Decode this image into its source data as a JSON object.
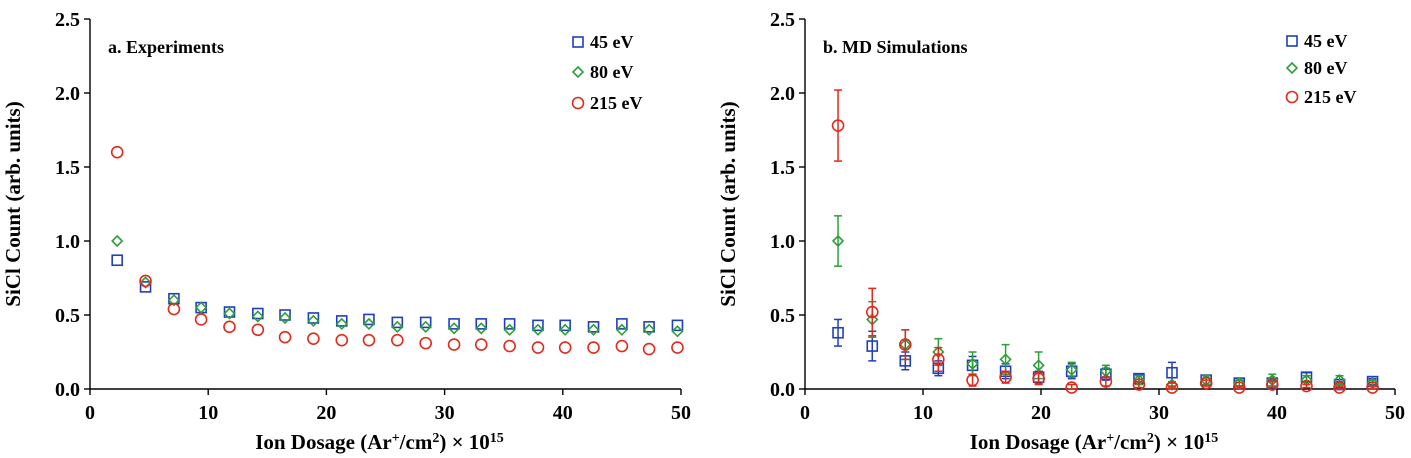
{
  "figure": {
    "series_colors": {
      "45 eV": "#1f3fbf",
      "80 eV": "#2e9e3a",
      "215 eV": "#e02a1c"
    },
    "series_markers": {
      "45 eV": "square",
      "80 eV": "diamond",
      "215 eV": "circle"
    }
  },
  "chart_data": [
    {
      "type": "scatter",
      "panel_label": "a. Experiments",
      "xlabel": "Ion Dosage (Ar",
      "xlabel_sup1": "+",
      "xlabel_mid": "/cm",
      "xlabel_sup2": "2",
      "xlabel_end": ") × 10",
      "xlabel_sup3": "15",
      "ylabel": "SiCl Count (arb. units)",
      "xlim": [
        0,
        50
      ],
      "ylim": [
        0,
        2.5
      ],
      "xticks": [
        0,
        10,
        20,
        30,
        40,
        50
      ],
      "yticks": [
        0.0,
        0.5,
        1.0,
        1.5,
        2.0,
        2.5
      ],
      "ytick_labels": [
        "0.0",
        "0.5",
        "1.0",
        "1.5",
        "2.0",
        "2.5"
      ],
      "grid": false,
      "legend_position": "top-right",
      "series": [
        {
          "name": "45 eV",
          "marker": "square",
          "x": [
            2.3,
            4.7,
            7.1,
            9.4,
            11.8,
            14.2,
            16.5,
            18.9,
            21.3,
            23.6,
            26.0,
            28.4,
            30.8,
            33.1,
            35.5,
            37.9,
            40.2,
            42.6,
            45.0,
            47.3,
            49.7
          ],
          "y": [
            0.87,
            0.69,
            0.61,
            0.55,
            0.52,
            0.51,
            0.5,
            0.48,
            0.46,
            0.47,
            0.45,
            0.45,
            0.44,
            0.44,
            0.44,
            0.43,
            0.43,
            0.42,
            0.44,
            0.42,
            0.43
          ]
        },
        {
          "name": "80 eV",
          "marker": "diamond",
          "x": [
            2.3,
            4.7,
            7.1,
            9.4,
            11.8,
            14.2,
            16.5,
            18.9,
            21.3,
            23.6,
            26.0,
            28.4,
            30.8,
            33.1,
            35.5,
            37.9,
            40.2,
            42.6,
            45.0,
            47.3,
            49.7
          ],
          "y": [
            1.0,
            0.72,
            0.6,
            0.55,
            0.51,
            0.49,
            0.48,
            0.46,
            0.44,
            0.44,
            0.42,
            0.42,
            0.41,
            0.41,
            0.4,
            0.4,
            0.4,
            0.4,
            0.4,
            0.4,
            0.39
          ]
        },
        {
          "name": "215 eV",
          "marker": "circle",
          "x": [
            2.3,
            4.7,
            7.1,
            9.4,
            11.8,
            14.2,
            16.5,
            18.9,
            21.3,
            23.6,
            26.0,
            28.4,
            30.8,
            33.1,
            35.5,
            37.9,
            40.2,
            42.6,
            45.0,
            47.3,
            49.7
          ],
          "y": [
            1.6,
            0.73,
            0.54,
            0.47,
            0.42,
            0.4,
            0.35,
            0.34,
            0.33,
            0.33,
            0.33,
            0.31,
            0.3,
            0.3,
            0.29,
            0.28,
            0.28,
            0.28,
            0.29,
            0.27,
            0.28
          ]
        }
      ]
    },
    {
      "type": "scatter",
      "panel_label": "b. MD Simulations",
      "xlabel": "Ion Dosage (Ar",
      "xlabel_sup1": "+",
      "xlabel_mid": "/cm",
      "xlabel_sup2": "2",
      "xlabel_end": ") × 10",
      "xlabel_sup3": "15",
      "ylabel": "SiCl Count (arb. units)",
      "xlim": [
        0,
        50
      ],
      "ylim": [
        0,
        2.5
      ],
      "xticks": [
        0,
        10,
        20,
        30,
        40,
        50
      ],
      "yticks": [
        0.0,
        0.5,
        1.0,
        1.5,
        2.0,
        2.5
      ],
      "ytick_labels": [
        "0.0",
        "0.5",
        "1.0",
        "1.5",
        "2.0",
        "2.5"
      ],
      "grid": false,
      "legend_position": "top-right",
      "series": [
        {
          "name": "45 eV",
          "marker": "square",
          "x": [
            2.8,
            5.7,
            8.5,
            11.3,
            14.2,
            17.0,
            19.8,
            22.6,
            25.5,
            28.3,
            31.1,
            34.0,
            36.8,
            39.6,
            42.5,
            45.3,
            48.1
          ],
          "y": [
            0.38,
            0.29,
            0.19,
            0.14,
            0.16,
            0.12,
            0.08,
            0.12,
            0.1,
            0.07,
            0.11,
            0.06,
            0.04,
            0.04,
            0.08,
            0.03,
            0.05
          ],
          "err": [
            0.09,
            0.1,
            0.06,
            0.05,
            0.06,
            0.05,
            0.04,
            0.05,
            0.04,
            0.03,
            0.07,
            0.03,
            0.02,
            0.02,
            0.03,
            0.02,
            0.02
          ]
        },
        {
          "name": "80 eV",
          "marker": "diamond",
          "x": [
            2.8,
            5.7,
            8.5,
            11.3,
            14.2,
            17.0,
            19.8,
            22.6,
            25.5,
            28.3,
            31.1,
            34.0,
            36.8,
            39.6,
            42.5,
            45.3,
            48.1
          ],
          "y": [
            1.0,
            0.47,
            0.3,
            0.25,
            0.17,
            0.2,
            0.16,
            0.13,
            0.12,
            0.06,
            0.03,
            0.06,
            0.04,
            0.06,
            0.06,
            0.06,
            0.04
          ],
          "err": [
            0.17,
            0.12,
            0.1,
            0.09,
            0.08,
            0.1,
            0.09,
            0.05,
            0.04,
            0.03,
            0.02,
            0.03,
            0.02,
            0.04,
            0.03,
            0.03,
            0.02
          ]
        },
        {
          "name": "215 eV",
          "marker": "circle",
          "x": [
            2.8,
            5.7,
            8.5,
            11.3,
            14.2,
            17.0,
            19.8,
            22.6,
            25.5,
            28.3,
            31.1,
            34.0,
            36.8,
            39.6,
            42.5,
            45.3,
            48.1
          ],
          "y": [
            1.78,
            0.52,
            0.3,
            0.2,
            0.06,
            0.08,
            0.07,
            0.01,
            0.05,
            0.03,
            0.01,
            0.04,
            0.01,
            0.03,
            0.02,
            0.01,
            0.01
          ],
          "err": [
            0.24,
            0.16,
            0.1,
            0.08,
            0.04,
            0.04,
            0.04,
            0.02,
            0.03,
            0.02,
            0.01,
            0.02,
            0.01,
            0.02,
            0.01,
            0.01,
            0.01
          ]
        }
      ]
    }
  ]
}
